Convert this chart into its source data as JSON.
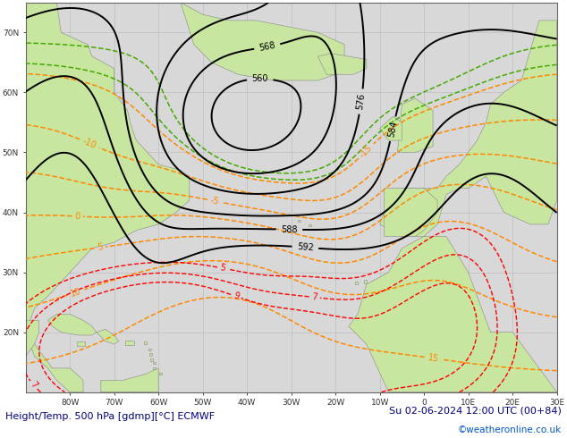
{
  "title_left": "Height/Temp. 500 hPa [gdmp][°C] ECMWF",
  "title_right": "Su 02-06-2024 12:00 UTC (00+84)",
  "credit": "©weatheronline.co.uk",
  "background_ocean": "#d8d8d8",
  "background_land": "#c8e6a0",
  "border_color": "#888888",
  "grid_color": "#b0b0b0",
  "contour_color_height": "#000000",
  "contour_color_temp_orange": "#ff8800",
  "contour_color_temp_red": "#ff0000",
  "contour_color_temp_green": "#44aa00",
  "fig_width": 6.34,
  "fig_height": 4.9,
  "dpi": 100,
  "lon_min": -90,
  "lon_max": 30,
  "lat_min": 10,
  "lat_max": 75,
  "title_fontsize": 8.0,
  "credit_fontsize": 7.5,
  "label_fontsize": 7,
  "tick_fontsize": 6.5
}
